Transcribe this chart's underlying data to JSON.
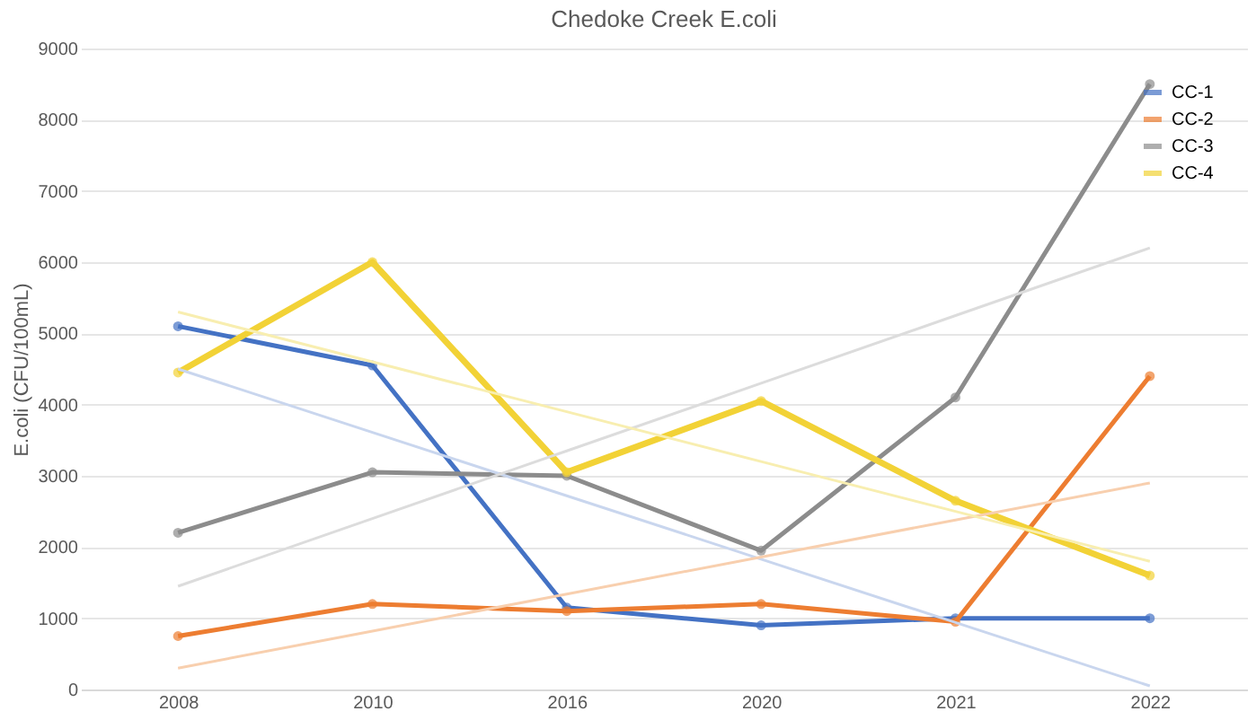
{
  "chart_data": {
    "type": "line",
    "title": "Chedoke Creek E.coli",
    "ylabel": "E.coli (CFU/100mL)",
    "categories": [
      "2008",
      "2010",
      "2016",
      "2020",
      "2021",
      "2022"
    ],
    "ylim": [
      0,
      9000
    ],
    "yticks": [
      0,
      1000,
      2000,
      3000,
      4000,
      5000,
      6000,
      7000,
      8000,
      9000
    ],
    "grid": "y",
    "legend": "top right",
    "marker": "circle",
    "series": [
      {
        "name": "CC-1",
        "color": "#4472c4",
        "values": [
          5100,
          4550,
          1150,
          900,
          1000,
          1000
        ]
      },
      {
        "name": "CC-2",
        "color": "#ed7d31",
        "values": [
          750,
          1200,
          1100,
          1200,
          950,
          4400
        ]
      },
      {
        "name": "CC-3",
        "color": "#8c8c8c",
        "values": [
          2200,
          3050,
          3000,
          1950,
          4100,
          8500
        ]
      },
      {
        "name": "CC-4",
        "color": "#f2d236",
        "values": [
          4450,
          6000,
          3050,
          4050,
          2650,
          1600
        ]
      },
      {
        "type": "line",
        "marker": "none",
        "color": "#c9d6ee",
        "values": [
          4500,
          3610,
          2720,
          1830,
          940,
          50
        ]
      },
      {
        "type": "line",
        "marker": "none",
        "color": "#f8cfae",
        "values": [
          300,
          820,
          1340,
          1860,
          2380,
          2900
        ]
      },
      {
        "type": "line",
        "marker": "none",
        "color": "#dcdcdc",
        "values": [
          1450,
          2400,
          3350,
          4300,
          5250,
          6200
        ]
      },
      {
        "type": "line",
        "marker": "none",
        "color": "#f8eeb0",
        "values": [
          5300,
          4600,
          3900,
          3200,
          2500,
          1800
        ]
      }
    ]
  }
}
